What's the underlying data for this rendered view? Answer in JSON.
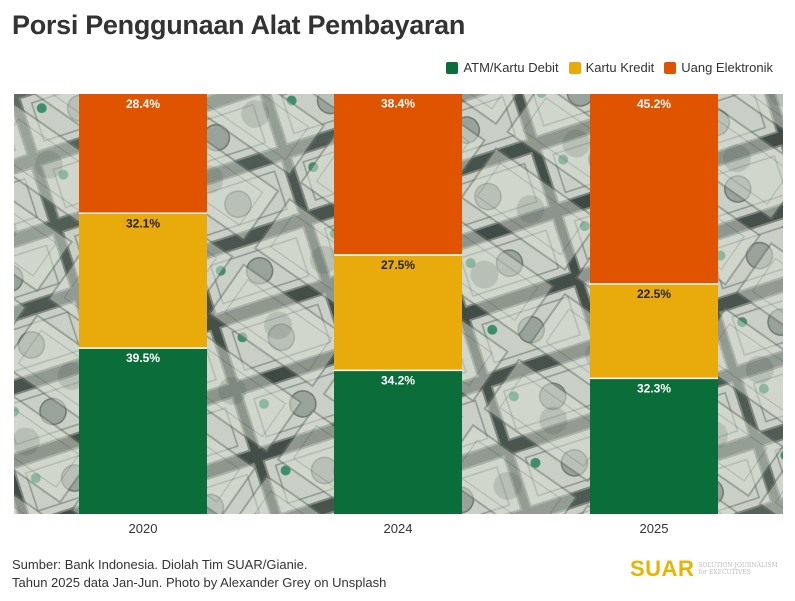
{
  "title": "Porsi Penggunaan Alat Pembayaran",
  "colors": {
    "atm": "#0b6e3a",
    "kredit": "#e9ab0c",
    "elektronik": "#e05400"
  },
  "legend": [
    {
      "label": "ATM/Kartu Debit",
      "color": "#0b6e3a"
    },
    {
      "label": "Kartu Kredit",
      "color": "#e9ab0c"
    },
    {
      "label": "Uang Elektronik",
      "color": "#e05400"
    }
  ],
  "chart_data": {
    "type": "bar",
    "stacked": true,
    "categories": [
      "2020",
      "2024",
      "2025"
    ],
    "series": [
      {
        "name": "ATM/Kartu Debit",
        "values": [
          39.5,
          34.2,
          32.3
        ],
        "labels": [
          "39.5%",
          "34.2%",
          "32.3%"
        ],
        "color": "#0b6e3a"
      },
      {
        "name": "Kartu Kredit",
        "values": [
          32.1,
          27.5,
          22.5
        ],
        "labels": [
          "32.1%",
          "27.5%",
          "22.5%"
        ],
        "color": "#e9ab0c"
      },
      {
        "name": "Uang Elektronik",
        "values": [
          28.4,
          38.4,
          45.2
        ],
        "labels": [
          "28.4%",
          "38.4%",
          "45.2%"
        ],
        "color": "#e05400"
      }
    ],
    "ylim": [
      0,
      100
    ],
    "grid": false,
    "legend_position": "top-right",
    "xlabel": "",
    "ylabel": ""
  },
  "footer": {
    "source_line1": "Sumber: Bank Indonesia. Diolah Tim SUAR/Gianie.",
    "source_line2": "Tahun 2025 data Jan-Jun. Photo by Alexander Grey on Unsplash"
  },
  "logo": {
    "wordmark": "SUAR",
    "tagline_line1": "SOLUTION JOURNALISM",
    "tagline_line2": "for EXECUTIVES"
  }
}
